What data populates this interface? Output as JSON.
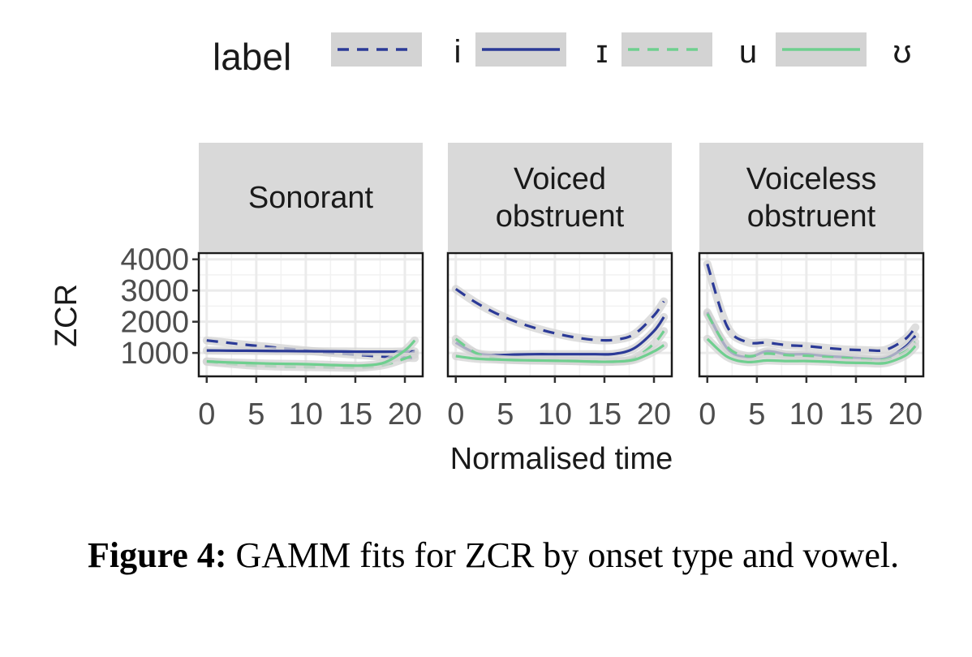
{
  "caption": {
    "label": "Figure 4:",
    "text": "GAMM fits for ZCR by onset type and vowel."
  },
  "colors": {
    "dark_blue": "#2b3a97",
    "green": "#6fcf8f",
    "ribbon": "#d3d3d3",
    "strip_bg": "#d9d9d9",
    "grid": "#ebebeb"
  },
  "chart_data": {
    "type": "line",
    "xlabel": "Normalised time",
    "ylabel": "ZCR",
    "xlim": [
      -0.8,
      21.8
    ],
    "ylim": [
      250,
      4200
    ],
    "x_ticks": [
      0,
      5,
      10,
      15,
      20
    ],
    "y_ticks": [
      1000,
      2000,
      3000,
      4000
    ],
    "legend": {
      "title": "label",
      "position": "top",
      "entries": [
        {
          "label": "i",
          "color": "#2b3a97",
          "dash": true
        },
        {
          "label": "ɪ",
          "color": "#2b3a97",
          "dash": false
        },
        {
          "label": "u",
          "color": "#6fcf8f",
          "dash": true
        },
        {
          "label": "ʊ",
          "color": "#6fcf8f",
          "dash": false
        }
      ]
    },
    "x": [
      0,
      2,
      4,
      6,
      8,
      10,
      12,
      14,
      16,
      18,
      20,
      21
    ],
    "panels": [
      {
        "title_lines": [
          "Sonorant"
        ],
        "series": [
          {
            "name": "i",
            "values": [
              1400,
              1330,
              1260,
              1200,
              1140,
              1080,
              1020,
              970,
              920,
              880,
              850,
              840
            ]
          },
          {
            "name": "ɪ",
            "values": [
              1080,
              1075,
              1070,
              1065,
              1060,
              1055,
              1050,
              1045,
              1040,
              1040,
              1045,
              1050
            ]
          },
          {
            "name": "u",
            "values": [
              720,
              660,
              610,
              580,
              560,
              550,
              540,
              530,
              540,
              620,
              820,
              950
            ]
          },
          {
            "name": "ʊ",
            "values": [
              730,
              700,
              680,
              660,
              650,
              640,
              620,
              600,
              600,
              700,
              1080,
              1400
            ]
          }
        ]
      },
      {
        "title_lines": [
          "Voiced",
          "obstruent"
        ],
        "series": [
          {
            "name": "i",
            "values": [
              3050,
              2620,
              2280,
              2010,
              1800,
              1630,
              1500,
              1420,
              1420,
              1600,
              2200,
              2650
            ]
          },
          {
            "name": "ɪ",
            "values": [
              1330,
              1000,
              930,
              950,
              960,
              960,
              960,
              960,
              970,
              1150,
              1700,
              2150
            ]
          },
          {
            "name": "u",
            "values": [
              1450,
              1000,
              820,
              780,
              760,
              760,
              740,
              730,
              730,
              830,
              1300,
              1700
            ]
          },
          {
            "name": "ʊ",
            "values": [
              900,
              820,
              790,
              770,
              760,
              750,
              740,
              720,
              720,
              780,
              1050,
              1250
            ]
          }
        ]
      },
      {
        "title_lines": [
          "Voiceless",
          "obstruent"
        ],
        "series": [
          {
            "name": "i",
            "values": [
              3850,
              1850,
              1350,
              1330,
              1250,
              1220,
              1160,
              1110,
              1090,
              1100,
              1450,
              1820
            ]
          },
          {
            "name": "ɪ",
            "values": [
              2300,
              1150,
              860,
              1050,
              960,
              960,
              900,
              860,
              820,
              830,
              1200,
              1550
            ]
          },
          {
            "name": "u",
            "values": [
              2250,
              1200,
              900,
              980,
              930,
              910,
              870,
              840,
              800,
              790,
              1050,
              1350
            ]
          },
          {
            "name": "ʊ",
            "values": [
              1450,
              880,
              710,
              760,
              740,
              740,
              720,
              690,
              680,
              680,
              920,
              1220
            ]
          }
        ]
      }
    ]
  }
}
